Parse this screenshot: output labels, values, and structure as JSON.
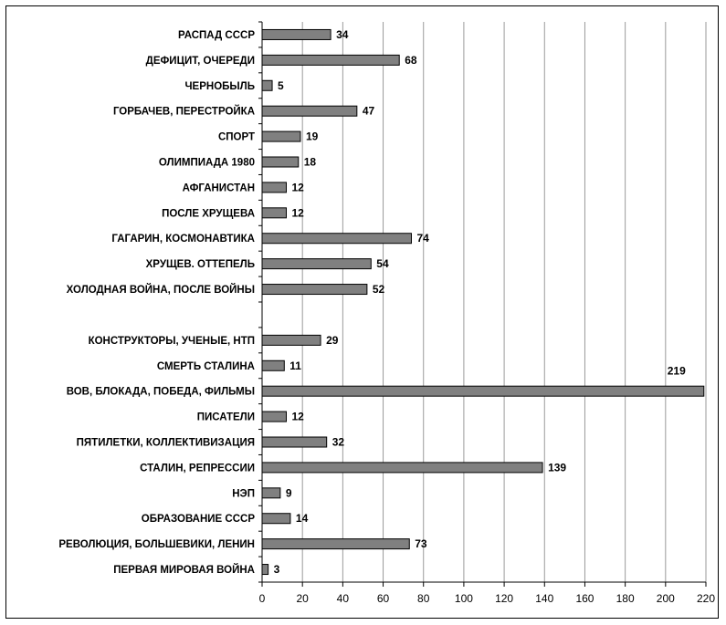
{
  "chart_data": {
    "type": "bar",
    "orientation": "horizontal",
    "title": "",
    "xlabel": "",
    "ylabel": "",
    "xlim": [
      0,
      220
    ],
    "x_ticks": [
      "0",
      "20",
      "40",
      "60",
      "80",
      "100",
      "120",
      "140",
      "160",
      "180",
      "200",
      "220"
    ],
    "grid": "vertical",
    "legend": "none",
    "bar_color": "#808080",
    "categories": [
      "РАСПАД СССР",
      "ДЕФИЦИТ, ОЧЕРЕДИ",
      "ЧЕРНОБЫЛЬ",
      "ГОРБАЧЕВ, ПЕРЕСТРОЙКА",
      "СПОРТ",
      "ОЛИМПИАДА 1980",
      "АФГАНИСТАН",
      "ПОСЛЕ ХРУЩЕВА",
      "ГАГАРИН, КОСМОНАВТИКА",
      "ХРУЩЕВ. ОТТЕПЕЛЬ",
      "ХОЛОДНАЯ ВОЙНА, ПОСЛЕ ВОЙНЫ",
      "",
      "КОНСТРУКТОРЫ, УЧЕНЫЕ, НТП",
      "СМЕРТЬ СТАЛИНА",
      "ВОВ, БЛОКАДА, ПОБЕДА, ФИЛЬМЫ",
      "ПИСАТЕЛИ",
      "ПЯТИЛЕТКИ, КОЛЛЕКТИВИЗАЦИЯ",
      "СТАЛИН, РЕПРЕССИИ",
      "НЭП",
      "ОБРАЗОВАНИЕ СССР",
      "РЕВОЛЮЦИЯ, БОЛЬШЕВИКИ, ЛЕНИН",
      "ПЕРВАЯ МИРОВАЯ ВОЙНА"
    ],
    "values": [
      34,
      68,
      5,
      47,
      19,
      18,
      12,
      12,
      74,
      54,
      52,
      null,
      29,
      11,
      219,
      12,
      32,
      139,
      9,
      14,
      73,
      3
    ],
    "value_labels": [
      "34",
      "68",
      "5",
      "47",
      "19",
      "18",
      "12",
      "12",
      "74",
      "54",
      "52",
      "",
      "29",
      "11",
      "219",
      "12",
      "32",
      "139",
      "9",
      "14",
      "73",
      "3"
    ]
  }
}
